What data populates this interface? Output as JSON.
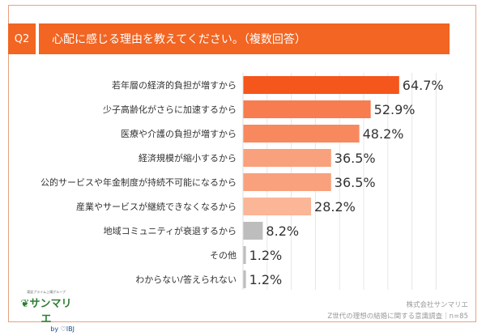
{
  "header": {
    "q": "Q2",
    "title": "心配に感じる理由を教えてください。（複数回答）"
  },
  "chart_data": {
    "type": "bar",
    "orientation": "horizontal",
    "categories": [
      "若年層の経済的負担が増すから",
      "少子高齢化がさらに加速するから",
      "医療や介護の負担が増すから",
      "経済規模が縮小するから",
      "公的サービスや年金制度が持続不可能になるから",
      "産業やサービスが継続できなくなるから",
      "地域コミュニティが衰退するから",
      "その他",
      "わからない/答えられない"
    ],
    "values": [
      64.7,
      52.9,
      48.2,
      36.5,
      36.5,
      28.2,
      8.2,
      1.2,
      1.2
    ],
    "value_labels": [
      "64.7%",
      "52.9%",
      "48.2%",
      "36.5%",
      "36.5%",
      "28.2%",
      "8.2%",
      "1.2%",
      "1.2%"
    ],
    "colors": [
      "#f4561c",
      "#f77c4f",
      "#f8895e",
      "#f9a07c",
      "#f9a07c",
      "#fbb597",
      "#bdbdbd",
      "#bdbdbd",
      "#bdbdbd"
    ],
    "grid": true,
    "unit": "%"
  },
  "logo": {
    "tagline": "東証プライム上場グループ",
    "name": "サンマリエ",
    "by": "by ♡IBJ"
  },
  "footer": {
    "company": "株式会社サンマリエ",
    "source": "Z世代の理想の結婚に関する意識調査｜n=85"
  }
}
